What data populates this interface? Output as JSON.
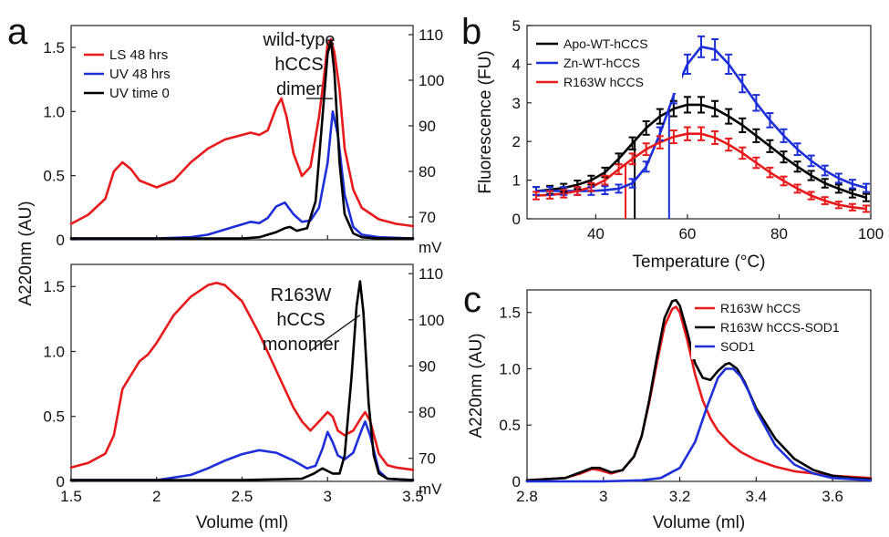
{
  "colors": {
    "red": "#e8191b",
    "blue": "#1c2fd8",
    "black": "#000000"
  },
  "chart_data": [
    {
      "id": "a_top",
      "type": "line",
      "panel_label": "a",
      "ylabel": "A220nm (AU)",
      "xlim": [
        1.5,
        3.5
      ],
      "ylim": [
        0,
        1.67
      ],
      "y_ticks": [
        "0",
        "0.5",
        "1.0",
        "1.5"
      ],
      "y_tick_values": [
        0,
        0.5,
        1.0,
        1.5
      ],
      "y2_ticks": [
        "70",
        "80",
        "90",
        "100",
        "110"
      ],
      "y2_tick_values": [
        70,
        80,
        90,
        100,
        110
      ],
      "y2lim": [
        65,
        112
      ],
      "y2_unit": "mV",
      "annotation": [
        "wild-type",
        "hCCS",
        "dimer"
      ],
      "legend": [
        "LS 48 hrs",
        "UV 48 hrs",
        "UV time 0"
      ],
      "series": [
        {
          "name": "LS 48 hrs",
          "color": "red",
          "axis": "right",
          "x": [
            1.5,
            1.6,
            1.7,
            1.75,
            1.8,
            1.85,
            1.9,
            2.0,
            2.1,
            2.2,
            2.3,
            2.4,
            2.5,
            2.55,
            2.6,
            2.65,
            2.7,
            2.73,
            2.76,
            2.8,
            2.85,
            2.9,
            2.95,
            2.98,
            3.0,
            3.02,
            3.04,
            3.07,
            3.1,
            3.15,
            3.2,
            3.3,
            3.4,
            3.5
          ],
          "y": [
            68.5,
            70.5,
            74,
            80,
            82,
            80.5,
            78,
            76.5,
            78,
            82,
            85,
            87,
            88,
            88.5,
            88,
            89,
            94,
            96,
            92,
            84,
            79,
            81,
            92,
            101,
            108,
            109,
            106,
            98,
            85,
            76,
            72,
            69.5,
            68.5,
            68
          ]
        },
        {
          "name": "UV 48 hrs",
          "color": "blue",
          "axis": "left",
          "x": [
            1.5,
            2.0,
            2.2,
            2.3,
            2.4,
            2.5,
            2.55,
            2.6,
            2.65,
            2.7,
            2.75,
            2.8,
            2.85,
            2.9,
            2.95,
            3.0,
            3.03,
            3.06,
            3.1,
            3.15,
            3.2,
            3.3,
            3.5
          ],
          "y": [
            0.01,
            0.01,
            0.02,
            0.04,
            0.08,
            0.12,
            0.14,
            0.13,
            0.17,
            0.26,
            0.29,
            0.2,
            0.14,
            0.15,
            0.25,
            0.6,
            1.0,
            0.82,
            0.35,
            0.1,
            0.04,
            0.02,
            0.01
          ]
        },
        {
          "name": "UV time 0",
          "color": "black",
          "axis": "left",
          "x": [
            1.5,
            2.0,
            2.5,
            2.6,
            2.7,
            2.75,
            2.78,
            2.82,
            2.88,
            2.93,
            2.97,
            3.0,
            3.02,
            3.04,
            3.07,
            3.1,
            3.15,
            3.2,
            3.3,
            3.5
          ],
          "y": [
            0.01,
            0.01,
            0.01,
            0.02,
            0.06,
            0.09,
            0.1,
            0.07,
            0.09,
            0.3,
            0.95,
            1.45,
            1.55,
            1.3,
            0.6,
            0.2,
            0.05,
            0.02,
            0.01,
            0.01
          ]
        }
      ]
    },
    {
      "id": "a_bottom",
      "type": "line",
      "xlabel": "Volume (ml)",
      "xlim": [
        1.5,
        3.5
      ],
      "ylim": [
        0,
        1.67
      ],
      "x_ticks": [
        "1.5",
        "2",
        "2.5",
        "3",
        "3.5"
      ],
      "x_tick_values": [
        1.5,
        2.0,
        2.5,
        3.0,
        3.5
      ],
      "y_ticks": [
        "0",
        "0.5",
        "1.0",
        "1.5"
      ],
      "y_tick_values": [
        0,
        0.5,
        1.0,
        1.5
      ],
      "y2_ticks": [
        "70",
        "80",
        "90",
        "100",
        "110"
      ],
      "y2_tick_values": [
        70,
        80,
        90,
        100,
        110
      ],
      "y2lim": [
        65,
        112
      ],
      "y2_unit": "mV",
      "annotation": [
        "R163W",
        "hCCS",
        "monomer"
      ],
      "series": [
        {
          "name": "LS 48 hrs",
          "color": "red",
          "axis": "right",
          "x": [
            1.5,
            1.6,
            1.7,
            1.75,
            1.8,
            1.85,
            1.9,
            1.95,
            2.0,
            2.1,
            2.2,
            2.3,
            2.35,
            2.4,
            2.5,
            2.6,
            2.7,
            2.8,
            2.85,
            2.9,
            2.95,
            3.0,
            3.03,
            3.06,
            3.1,
            3.15,
            3.2,
            3.22,
            3.25,
            3.3,
            3.35,
            3.4,
            3.5
          ],
          "y": [
            68,
            69,
            71,
            75,
            85,
            88,
            91,
            92.5,
            95,
            101,
            105,
            107.5,
            108,
            107.5,
            104,
            97,
            89,
            81,
            78,
            76,
            78,
            80,
            79,
            76,
            75,
            76,
            79,
            80,
            78,
            71,
            68.5,
            68,
            67.5
          ]
        },
        {
          "name": "UV 48 hrs",
          "color": "blue",
          "axis": "left",
          "x": [
            1.5,
            2.0,
            2.2,
            2.3,
            2.4,
            2.5,
            2.6,
            2.7,
            2.8,
            2.88,
            2.93,
            2.97,
            3.0,
            3.03,
            3.06,
            3.1,
            3.15,
            3.2,
            3.22,
            3.25,
            3.3,
            3.35,
            3.5
          ],
          "y": [
            0.01,
            0.01,
            0.05,
            0.1,
            0.16,
            0.21,
            0.24,
            0.22,
            0.16,
            0.1,
            0.12,
            0.25,
            0.38,
            0.3,
            0.2,
            0.17,
            0.22,
            0.4,
            0.46,
            0.35,
            0.08,
            0.02,
            0.01
          ]
        },
        {
          "name": "UV time 0",
          "color": "black",
          "axis": "left",
          "x": [
            1.5,
            2.5,
            2.85,
            2.92,
            2.97,
            3.0,
            3.03,
            3.07,
            3.1,
            3.14,
            3.17,
            3.19,
            3.21,
            3.24,
            3.27,
            3.3,
            3.35,
            3.5
          ],
          "y": [
            0.01,
            0.01,
            0.02,
            0.06,
            0.1,
            0.08,
            0.06,
            0.06,
            0.2,
            0.8,
            1.35,
            1.54,
            1.3,
            0.6,
            0.2,
            0.06,
            0.02,
            0.01
          ]
        }
      ]
    },
    {
      "id": "b",
      "type": "line",
      "panel_label": "b",
      "xlabel": "Temperature (°C)",
      "ylabel": "Fluorescence (FU)",
      "xlim": [
        25,
        100
      ],
      "ylim": [
        0,
        5
      ],
      "x_ticks": [
        "40",
        "60",
        "80",
        "100"
      ],
      "x_tick_values": [
        40,
        60,
        80,
        100
      ],
      "y_ticks": [
        "0",
        "1",
        "2",
        "3",
        "4",
        "5"
      ],
      "y_tick_values": [
        0,
        1,
        2,
        3,
        4,
        5
      ],
      "legend": [
        "Apo-WT-hCCS",
        "Zn-WT-hCCS",
        "R163W hCCS"
      ],
      "vertical_markers": [
        {
          "x": 46.5,
          "color": "red"
        },
        {
          "x": 48.5,
          "color": "black"
        },
        {
          "x": 56,
          "color": "blue"
        }
      ],
      "series": [
        {
          "name": "Apo-WT-hCCS",
          "color": "black",
          "x": [
            27,
            30,
            33,
            36,
            39,
            42,
            45,
            48,
            51,
            54,
            57,
            60,
            63,
            66,
            69,
            72,
            75,
            78,
            81,
            84,
            87,
            90,
            93,
            96,
            99
          ],
          "y": [
            0.72,
            0.75,
            0.8,
            0.88,
            1.0,
            1.2,
            1.55,
            1.95,
            2.35,
            2.65,
            2.85,
            2.95,
            2.95,
            2.85,
            2.65,
            2.42,
            2.15,
            1.88,
            1.6,
            1.35,
            1.12,
            0.92,
            0.78,
            0.65,
            0.55
          ]
        },
        {
          "name": "Zn-WT-hCCS",
          "color": "blue",
          "x": [
            27,
            30,
            33,
            36,
            39,
            42,
            45,
            48,
            51,
            54,
            57,
            60,
            63,
            66,
            69,
            72,
            75,
            78,
            81,
            84,
            87,
            90,
            93,
            96,
            99
          ],
          "y": [
            0.72,
            0.72,
            0.72,
            0.72,
            0.72,
            0.74,
            0.78,
            0.92,
            1.35,
            2.2,
            3.2,
            4.0,
            4.45,
            4.38,
            4.0,
            3.5,
            3.0,
            2.55,
            2.15,
            1.8,
            1.5,
            1.25,
            1.05,
            0.9,
            0.8
          ]
        },
        {
          "name": "R163W hCCS",
          "color": "red",
          "x": [
            27,
            30,
            33,
            36,
            39,
            42,
            45,
            48,
            51,
            54,
            57,
            60,
            63,
            66,
            69,
            72,
            75,
            78,
            81,
            84,
            87,
            90,
            93,
            96,
            99
          ],
          "y": [
            0.6,
            0.62,
            0.65,
            0.72,
            0.82,
            1.0,
            1.28,
            1.55,
            1.8,
            1.98,
            2.12,
            2.2,
            2.2,
            2.1,
            1.92,
            1.7,
            1.45,
            1.2,
            0.98,
            0.78,
            0.6,
            0.47,
            0.36,
            0.3,
            0.26
          ]
        }
      ]
    },
    {
      "id": "c",
      "type": "line",
      "panel_label": "c",
      "xlabel": "Volume (ml)",
      "ylabel": "A220nm (AU)",
      "xlim": [
        2.8,
        3.7
      ],
      "ylim": [
        0,
        1.7
      ],
      "x_ticks": [
        "2.8",
        "3",
        "3.2",
        "3.4",
        "3.6"
      ],
      "x_tick_values": [
        2.8,
        3.0,
        3.2,
        3.4,
        3.6
      ],
      "y_ticks": [
        "0",
        "0.5",
        "1.0",
        "1.5"
      ],
      "y_tick_values": [
        0,
        0.5,
        1.0,
        1.5
      ],
      "legend": [
        "R163W hCCS",
        "R163W hCCS-SOD1",
        "SOD1"
      ],
      "series": [
        {
          "name": "R163W hCCS",
          "color": "red",
          "x": [
            2.8,
            2.9,
            2.94,
            2.97,
            2.99,
            3.02,
            3.05,
            3.08,
            3.1,
            3.12,
            3.14,
            3.16,
            3.18,
            3.19,
            3.2,
            3.22,
            3.24,
            3.26,
            3.28,
            3.3,
            3.33,
            3.36,
            3.4,
            3.45,
            3.5,
            3.6,
            3.7
          ],
          "y": [
            0.01,
            0.03,
            0.07,
            0.11,
            0.1,
            0.07,
            0.1,
            0.22,
            0.4,
            0.7,
            1.05,
            1.38,
            1.53,
            1.55,
            1.5,
            1.25,
            0.95,
            0.72,
            0.56,
            0.45,
            0.34,
            0.26,
            0.19,
            0.13,
            0.09,
            0.05,
            0.03
          ]
        },
        {
          "name": "R163W hCCS-SOD1",
          "color": "black",
          "x": [
            2.8,
            2.9,
            2.94,
            2.97,
            2.99,
            3.02,
            3.05,
            3.08,
            3.1,
            3.12,
            3.14,
            3.16,
            3.18,
            3.19,
            3.2,
            3.22,
            3.24,
            3.26,
            3.28,
            3.3,
            3.32,
            3.33,
            3.35,
            3.37,
            3.4,
            3.45,
            3.5,
            3.55,
            3.6,
            3.65,
            3.7
          ],
          "y": [
            0.01,
            0.03,
            0.08,
            0.12,
            0.12,
            0.08,
            0.1,
            0.22,
            0.4,
            0.72,
            1.1,
            1.45,
            1.6,
            1.61,
            1.56,
            1.32,
            1.05,
            0.92,
            0.9,
            0.98,
            1.04,
            1.05,
            1.0,
            0.88,
            0.65,
            0.38,
            0.2,
            0.1,
            0.05,
            0.03,
            0.02
          ]
        },
        {
          "name": "SOD1",
          "color": "blue",
          "x": [
            2.8,
            3.0,
            3.1,
            3.15,
            3.2,
            3.24,
            3.27,
            3.3,
            3.32,
            3.34,
            3.36,
            3.38,
            3.4,
            3.45,
            3.5,
            3.55,
            3.6,
            3.7
          ],
          "y": [
            0.0,
            0.0,
            0.01,
            0.03,
            0.12,
            0.35,
            0.65,
            0.92,
            1.0,
            1.0,
            0.93,
            0.8,
            0.63,
            0.32,
            0.15,
            0.07,
            0.03,
            0.01
          ]
        }
      ]
    }
  ]
}
